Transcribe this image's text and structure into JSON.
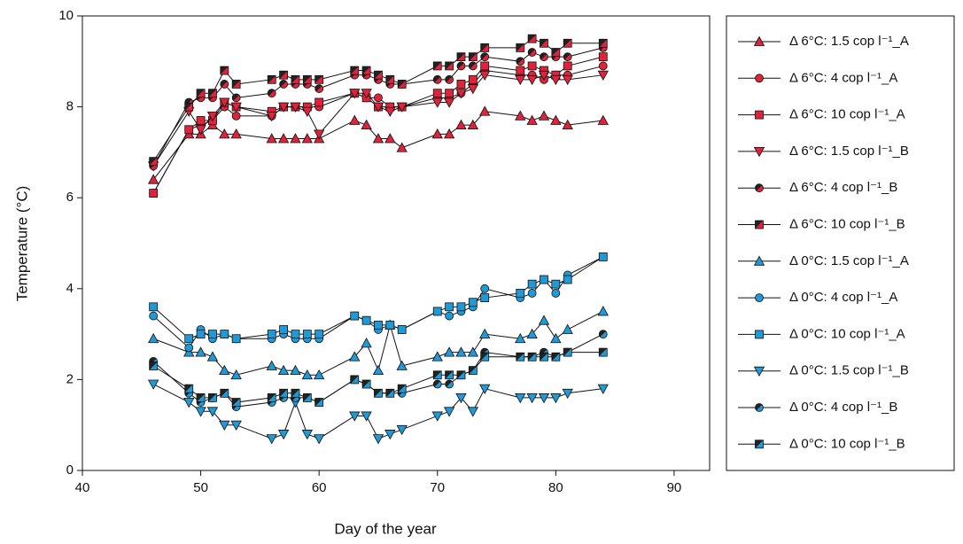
{
  "chart_data": {
    "type": "line",
    "xlabel": "Day of the year",
    "ylabel": "Temperature (°C)",
    "x": [
      46,
      49,
      50,
      51,
      52,
      53,
      56,
      57,
      58,
      59,
      60,
      63,
      64,
      65,
      66,
      67,
      70,
      71,
      72,
      73,
      74,
      77,
      78,
      79,
      80,
      81,
      84
    ],
    "xlim": [
      40,
      93
    ],
    "xticks": [
      40,
      50,
      60,
      70,
      80,
      90
    ],
    "ylim": [
      0,
      10
    ],
    "yticks": [
      0,
      2,
      4,
      6,
      8,
      10
    ],
    "grid": false,
    "legend": "right",
    "series": [
      {
        "name": "Δ 6°C: 1.5 cop l⁻¹_A",
        "color": "#e0233a",
        "marker": "triangle-up",
        "half_dark": false,
        "values": [
          6.4,
          7.4,
          7.4,
          7.6,
          7.4,
          7.4,
          7.3,
          7.3,
          7.3,
          7.3,
          7.3,
          7.7,
          7.6,
          7.3,
          7.3,
          7.1,
          7.4,
          7.4,
          7.6,
          7.6,
          7.9,
          7.8,
          7.7,
          7.8,
          7.7,
          7.6,
          7.7
        ]
      },
      {
        "name": "Δ 6°C: 4 cop l⁻¹_A",
        "color": "#e0233a",
        "marker": "circle",
        "half_dark": false,
        "values": [
          6.1,
          7.5,
          7.6,
          7.7,
          8.0,
          7.8,
          7.8,
          8.0,
          8.0,
          8.0,
          8.0,
          8.3,
          8.2,
          8.2,
          8.0,
          8.0,
          8.2,
          8.2,
          8.3,
          8.5,
          8.8,
          8.7,
          8.7,
          8.6,
          8.7,
          8.7,
          8.9
        ]
      },
      {
        "name": "Δ 6°C: 10 cop l⁻¹_A",
        "color": "#e0233a",
        "marker": "square",
        "half_dark": false,
        "values": [
          6.1,
          7.5,
          7.7,
          7.7,
          8.1,
          8.0,
          7.9,
          8.0,
          8.0,
          8.0,
          8.1,
          8.3,
          8.2,
          8.0,
          8.0,
          8.0,
          8.3,
          8.3,
          8.5,
          8.6,
          8.9,
          8.8,
          8.9,
          8.8,
          8.7,
          8.9,
          9.1
        ]
      },
      {
        "name": "Δ 6°C: 1.5 cop l⁻¹_B",
        "color": "#e0233a",
        "marker": "triangle-down",
        "half_dark": false,
        "values": [
          6.7,
          7.9,
          7.5,
          7.8,
          8.1,
          8.0,
          7.8,
          8.0,
          8.0,
          7.9,
          7.4,
          8.3,
          8.3,
          8.0,
          7.9,
          8.0,
          8.1,
          8.1,
          8.3,
          8.4,
          8.7,
          8.6,
          8.6,
          8.7,
          8.6,
          8.6,
          8.7
        ]
      },
      {
        "name": "Δ 6°C: 4 cop l⁻¹_B",
        "color": "#e0233a",
        "marker": "circle",
        "half_dark": true,
        "values": [
          6.7,
          8.1,
          8.2,
          8.2,
          8.5,
          8.2,
          8.3,
          8.5,
          8.5,
          8.5,
          8.4,
          8.7,
          8.7,
          8.6,
          8.5,
          8.5,
          8.6,
          8.6,
          8.9,
          8.9,
          9.1,
          9.0,
          9.2,
          9.1,
          9.1,
          9.1,
          9.3
        ]
      },
      {
        "name": "Δ 6°C: 10 cop l⁻¹_B",
        "color": "#e0233a",
        "marker": "square",
        "half_dark": true,
        "values": [
          6.8,
          8.0,
          8.3,
          8.3,
          8.8,
          8.5,
          8.6,
          8.7,
          8.6,
          8.6,
          8.6,
          8.8,
          8.8,
          8.7,
          8.6,
          8.5,
          8.9,
          8.9,
          9.1,
          9.1,
          9.3,
          9.3,
          9.5,
          9.4,
          9.2,
          9.4,
          9.4
        ]
      },
      {
        "name": "Δ 0°C: 1.5 cop l⁻¹_A",
        "color": "#1f9ad6",
        "marker": "triangle-up",
        "half_dark": false,
        "values": [
          2.9,
          2.6,
          2.6,
          2.5,
          2.2,
          2.1,
          2.3,
          2.2,
          2.2,
          2.1,
          2.1,
          2.5,
          2.8,
          2.2,
          3.2,
          2.3,
          2.5,
          2.6,
          2.6,
          2.6,
          3.0,
          2.9,
          3.0,
          3.3,
          2.9,
          3.1,
          3.5
        ]
      },
      {
        "name": "Δ 0°C: 4 cop l⁻¹_A",
        "color": "#1f9ad6",
        "marker": "circle",
        "half_dark": false,
        "values": [
          3.4,
          2.7,
          3.1,
          2.9,
          3.0,
          2.9,
          2.9,
          3.0,
          2.9,
          2.9,
          2.9,
          3.4,
          3.3,
          3.1,
          3.2,
          3.1,
          3.5,
          3.4,
          3.5,
          3.6,
          4.0,
          3.8,
          3.9,
          4.2,
          3.9,
          4.3,
          4.7
        ]
      },
      {
        "name": "Δ 0°C: 10 cop l⁻¹_A",
        "color": "#1f9ad6",
        "marker": "square",
        "half_dark": false,
        "values": [
          3.6,
          2.9,
          3.0,
          3.0,
          3.0,
          2.9,
          3.0,
          3.1,
          3.0,
          3.0,
          3.0,
          3.4,
          3.3,
          3.2,
          3.2,
          3.1,
          3.5,
          3.6,
          3.6,
          3.7,
          3.8,
          3.9,
          4.1,
          4.2,
          4.1,
          4.2,
          4.7
        ]
      },
      {
        "name": "Δ 0°C: 1.5 cop l⁻¹_B",
        "color": "#1f9ad6",
        "marker": "triangle-down",
        "half_dark": false,
        "values": [
          1.9,
          1.5,
          1.3,
          1.3,
          1.0,
          1.0,
          0.7,
          0.8,
          1.5,
          0.8,
          0.7,
          1.2,
          1.2,
          0.7,
          0.8,
          0.9,
          1.2,
          1.3,
          1.6,
          1.3,
          1.8,
          1.6,
          1.6,
          1.6,
          1.6,
          1.7,
          1.8
        ]
      },
      {
        "name": "Δ 0°C: 4 cop l⁻¹_B",
        "color": "#1f9ad6",
        "marker": "circle",
        "half_dark": true,
        "values": [
          2.4,
          1.7,
          1.5,
          1.6,
          1.7,
          1.4,
          1.5,
          1.6,
          1.6,
          1.6,
          1.5,
          2.0,
          1.9,
          1.7,
          1.7,
          1.7,
          1.9,
          1.9,
          2.1,
          2.2,
          2.6,
          2.5,
          2.5,
          2.6,
          2.5,
          2.6,
          3.0
        ]
      },
      {
        "name": "Δ 0°C: 10 cop l⁻¹_B",
        "color": "#1f9ad6",
        "marker": "square",
        "half_dark": true,
        "values": [
          2.3,
          1.8,
          1.6,
          1.6,
          1.7,
          1.5,
          1.6,
          1.7,
          1.7,
          1.6,
          1.5,
          2.0,
          1.9,
          1.7,
          1.7,
          1.8,
          2.1,
          2.1,
          2.1,
          2.2,
          2.5,
          2.5,
          2.5,
          2.5,
          2.5,
          2.6,
          2.6
        ]
      }
    ]
  }
}
